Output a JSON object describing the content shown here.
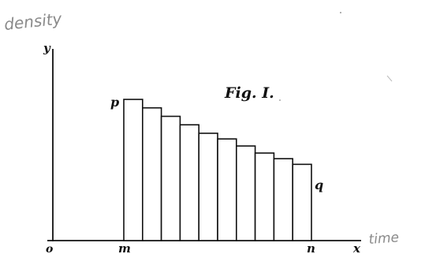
{
  "figure": {
    "title": "Fig. I.",
    "labels": {
      "y": "y",
      "x": "x",
      "origin": "o",
      "m": "m",
      "n": "n",
      "p": "p",
      "q": "q"
    },
    "handwritten": {
      "density": "density",
      "time": "time"
    }
  },
  "chart_data": {
    "type": "bar",
    "description_units": "relative heights (arbitrary units)",
    "values": [
      100,
      94,
      88,
      82,
      76,
      72,
      67,
      62,
      58,
      54
    ],
    "ylim": [
      0,
      100
    ]
  }
}
